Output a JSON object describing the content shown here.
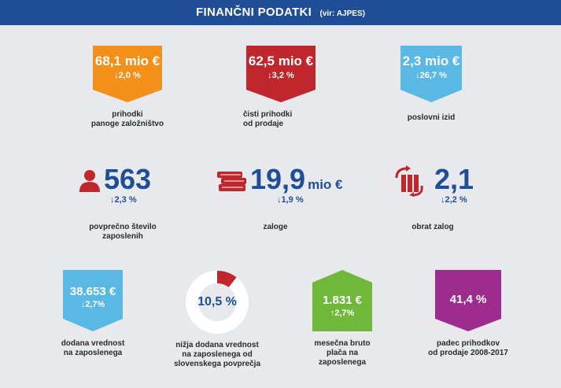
{
  "header": {
    "title": "FINANČNI PODATKI",
    "source": "(vir: AJPES)"
  },
  "colors": {
    "header": "#1f4e96",
    "orange": "#f39019",
    "red": "#c0272d",
    "lightblue": "#5ab8e4",
    "green": "#70b839",
    "purple": "#9e2c8f",
    "navy": "#1f4e96"
  },
  "row1": [
    {
      "value": "68,1 mio €",
      "change": "↓2,0 %",
      "label": "prihodki\npanoge založništvo",
      "color": "orange",
      "icon": "arrow-down-badge"
    },
    {
      "value": "62,5 mio €",
      "change": "↓3,2 %",
      "label": "čisti prihodki\nod prodaje",
      "color": "red",
      "icon": "arrow-down-badge"
    },
    {
      "value": "2,3 mio €",
      "change": "↓26,7 %",
      "label": "poslovni izid",
      "color": "lightblue",
      "icon": "arrow-down-badge"
    }
  ],
  "row2": [
    {
      "value": "563",
      "unit": "",
      "change": "↓2,3 %",
      "label": "povprečno število\nzaposlenih",
      "icon": "person-icon"
    },
    {
      "value": "19,9",
      "unit": "mio €",
      "change": "↓1,9 %",
      "label": "zaloge",
      "icon": "books-icon"
    },
    {
      "value": "2,1",
      "unit": "",
      "change": "↓2,2 %",
      "label": "obrat zalog",
      "icon": "rotating-binders-icon"
    }
  ],
  "row3": [
    {
      "value": "38.653 €",
      "change": "↓2,7%",
      "label": "dodana vrednost\nna zaposlenega",
      "icon": "arrow-down-badge"
    },
    {
      "value": "10,5 %",
      "percent": 10.5,
      "label": "nižja dodana vrednost\nna zaposlenega od\nslovenskega povprečja",
      "icon": "donut-chart"
    },
    {
      "value": "1.831 €",
      "change": "↑2,7%",
      "label": "mesečna bruto\nplača na\nzaposlenega",
      "icon": "arrow-up-badge"
    },
    {
      "value": "41,4 %",
      "label": "padec prihodkov\nod prodaje 2008-2017",
      "icon": "arrow-down-badge"
    }
  ]
}
